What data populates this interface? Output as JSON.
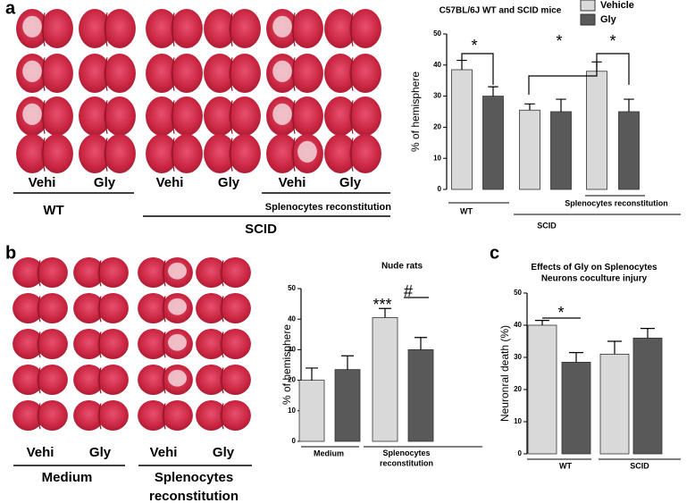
{
  "panel_labels": [
    "a",
    "b",
    "c"
  ],
  "images_a": {
    "columns": [
      "Vehi",
      "Gly",
      "Vehi",
      "Gly",
      "Vehi",
      "Gly"
    ],
    "groups": [
      "WT",
      "Splenocytes reconstitution",
      "SCID"
    ]
  },
  "images_b": {
    "columns": [
      "Vehi",
      "Gly",
      "Vehi",
      "Gly"
    ],
    "groups": [
      "Medium",
      "Splenocytes",
      "reconstitution"
    ]
  },
  "chart_data": [
    {
      "type": "bar",
      "title": "C57BL/6J WT and SCID mice",
      "ylabel": "% of hemisphere",
      "categories": [
        "WT",
        "SCID",
        "Splenocytes reconstitution"
      ],
      "series": [
        {
          "name": "Vehicle",
          "color": "#d9d9d9",
          "values": [
            38.5,
            25.5,
            38
          ],
          "errors": [
            3,
            2,
            3
          ]
        },
        {
          "name": "Gly",
          "color": "#595959",
          "values": [
            30,
            25,
            25
          ],
          "errors": [
            3,
            4,
            4
          ]
        }
      ],
      "ylim": [
        0,
        50
      ],
      "yticks": [
        0,
        10,
        20,
        30,
        40,
        50
      ],
      "legend": "top-right",
      "annotations": [
        "*",
        "*",
        "*"
      ]
    },
    {
      "type": "bar",
      "title": "Nude rats",
      "ylabel": "% of hemisphere",
      "categories": [
        "Medium",
        "Splenocytes reconstitution"
      ],
      "series": [
        {
          "color": "#d9d9d9",
          "values": [
            20,
            40.5
          ],
          "errors": [
            4,
            3
          ]
        },
        {
          "color": "#595959",
          "values": [
            23.5,
            30
          ],
          "errors": [
            4.5,
            4
          ]
        }
      ],
      "ylim": [
        0,
        50
      ],
      "yticks": [
        0,
        10,
        20,
        30,
        40,
        50
      ],
      "annotations": [
        "***",
        "#"
      ]
    },
    {
      "type": "bar",
      "title": "Effects of Gly on Splenocytes Neurons coculture injury",
      "ylabel": "Neuronral death (%)",
      "categories": [
        "WT",
        "SCID"
      ],
      "series": [
        {
          "color": "#d9d9d9",
          "values": [
            40,
            31
          ],
          "errors": [
            1.5,
            4
          ]
        },
        {
          "color": "#595959",
          "values": [
            28.5,
            36
          ],
          "errors": [
            3,
            3
          ]
        }
      ],
      "ylim": [
        0,
        50
      ],
      "yticks": [
        0,
        10,
        20,
        30,
        40,
        50
      ],
      "annotations": [
        "*"
      ]
    }
  ]
}
